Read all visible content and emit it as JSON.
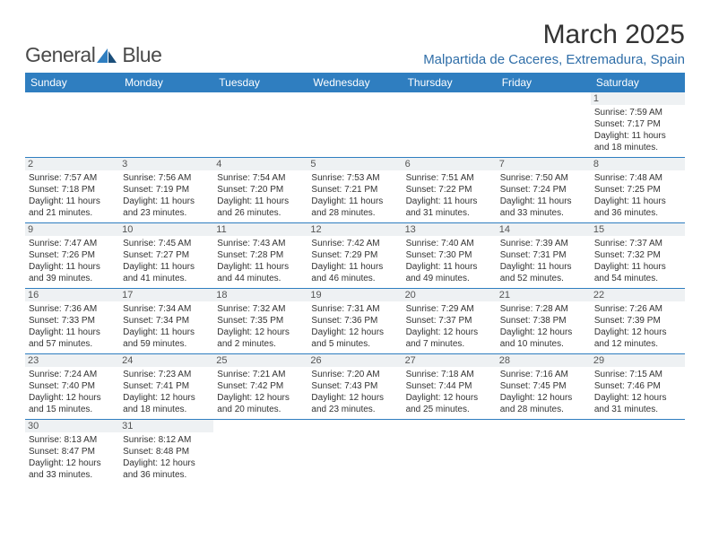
{
  "logo": {
    "text1": "General",
    "text2": "Blue",
    "iconColor": "#2f7ec0"
  },
  "title": "March 2025",
  "location": "Malpartida de Caceres, Extremadura, Spain",
  "colors": {
    "header": "#2f7ec0",
    "dayBg": "#eef1f3",
    "location": "#2f6ea8"
  },
  "weekdays": [
    "Sunday",
    "Monday",
    "Tuesday",
    "Wednesday",
    "Thursday",
    "Friday",
    "Saturday"
  ],
  "weeks": [
    [
      null,
      null,
      null,
      null,
      null,
      null,
      {
        "n": "1",
        "sr": "Sunrise: 7:59 AM",
        "ss": "Sunset: 7:17 PM",
        "d1": "Daylight: 11 hours",
        "d2": "and 18 minutes."
      }
    ],
    [
      {
        "n": "2",
        "sr": "Sunrise: 7:57 AM",
        "ss": "Sunset: 7:18 PM",
        "d1": "Daylight: 11 hours",
        "d2": "and 21 minutes."
      },
      {
        "n": "3",
        "sr": "Sunrise: 7:56 AM",
        "ss": "Sunset: 7:19 PM",
        "d1": "Daylight: 11 hours",
        "d2": "and 23 minutes."
      },
      {
        "n": "4",
        "sr": "Sunrise: 7:54 AM",
        "ss": "Sunset: 7:20 PM",
        "d1": "Daylight: 11 hours",
        "d2": "and 26 minutes."
      },
      {
        "n": "5",
        "sr": "Sunrise: 7:53 AM",
        "ss": "Sunset: 7:21 PM",
        "d1": "Daylight: 11 hours",
        "d2": "and 28 minutes."
      },
      {
        "n": "6",
        "sr": "Sunrise: 7:51 AM",
        "ss": "Sunset: 7:22 PM",
        "d1": "Daylight: 11 hours",
        "d2": "and 31 minutes."
      },
      {
        "n": "7",
        "sr": "Sunrise: 7:50 AM",
        "ss": "Sunset: 7:24 PM",
        "d1": "Daylight: 11 hours",
        "d2": "and 33 minutes."
      },
      {
        "n": "8",
        "sr": "Sunrise: 7:48 AM",
        "ss": "Sunset: 7:25 PM",
        "d1": "Daylight: 11 hours",
        "d2": "and 36 minutes."
      }
    ],
    [
      {
        "n": "9",
        "sr": "Sunrise: 7:47 AM",
        "ss": "Sunset: 7:26 PM",
        "d1": "Daylight: 11 hours",
        "d2": "and 39 minutes."
      },
      {
        "n": "10",
        "sr": "Sunrise: 7:45 AM",
        "ss": "Sunset: 7:27 PM",
        "d1": "Daylight: 11 hours",
        "d2": "and 41 minutes."
      },
      {
        "n": "11",
        "sr": "Sunrise: 7:43 AM",
        "ss": "Sunset: 7:28 PM",
        "d1": "Daylight: 11 hours",
        "d2": "and 44 minutes."
      },
      {
        "n": "12",
        "sr": "Sunrise: 7:42 AM",
        "ss": "Sunset: 7:29 PM",
        "d1": "Daylight: 11 hours",
        "d2": "and 46 minutes."
      },
      {
        "n": "13",
        "sr": "Sunrise: 7:40 AM",
        "ss": "Sunset: 7:30 PM",
        "d1": "Daylight: 11 hours",
        "d2": "and 49 minutes."
      },
      {
        "n": "14",
        "sr": "Sunrise: 7:39 AM",
        "ss": "Sunset: 7:31 PM",
        "d1": "Daylight: 11 hours",
        "d2": "and 52 minutes."
      },
      {
        "n": "15",
        "sr": "Sunrise: 7:37 AM",
        "ss": "Sunset: 7:32 PM",
        "d1": "Daylight: 11 hours",
        "d2": "and 54 minutes."
      }
    ],
    [
      {
        "n": "16",
        "sr": "Sunrise: 7:36 AM",
        "ss": "Sunset: 7:33 PM",
        "d1": "Daylight: 11 hours",
        "d2": "and 57 minutes."
      },
      {
        "n": "17",
        "sr": "Sunrise: 7:34 AM",
        "ss": "Sunset: 7:34 PM",
        "d1": "Daylight: 11 hours",
        "d2": "and 59 minutes."
      },
      {
        "n": "18",
        "sr": "Sunrise: 7:32 AM",
        "ss": "Sunset: 7:35 PM",
        "d1": "Daylight: 12 hours",
        "d2": "and 2 minutes."
      },
      {
        "n": "19",
        "sr": "Sunrise: 7:31 AM",
        "ss": "Sunset: 7:36 PM",
        "d1": "Daylight: 12 hours",
        "d2": "and 5 minutes."
      },
      {
        "n": "20",
        "sr": "Sunrise: 7:29 AM",
        "ss": "Sunset: 7:37 PM",
        "d1": "Daylight: 12 hours",
        "d2": "and 7 minutes."
      },
      {
        "n": "21",
        "sr": "Sunrise: 7:28 AM",
        "ss": "Sunset: 7:38 PM",
        "d1": "Daylight: 12 hours",
        "d2": "and 10 minutes."
      },
      {
        "n": "22",
        "sr": "Sunrise: 7:26 AM",
        "ss": "Sunset: 7:39 PM",
        "d1": "Daylight: 12 hours",
        "d2": "and 12 minutes."
      }
    ],
    [
      {
        "n": "23",
        "sr": "Sunrise: 7:24 AM",
        "ss": "Sunset: 7:40 PM",
        "d1": "Daylight: 12 hours",
        "d2": "and 15 minutes."
      },
      {
        "n": "24",
        "sr": "Sunrise: 7:23 AM",
        "ss": "Sunset: 7:41 PM",
        "d1": "Daylight: 12 hours",
        "d2": "and 18 minutes."
      },
      {
        "n": "25",
        "sr": "Sunrise: 7:21 AM",
        "ss": "Sunset: 7:42 PM",
        "d1": "Daylight: 12 hours",
        "d2": "and 20 minutes."
      },
      {
        "n": "26",
        "sr": "Sunrise: 7:20 AM",
        "ss": "Sunset: 7:43 PM",
        "d1": "Daylight: 12 hours",
        "d2": "and 23 minutes."
      },
      {
        "n": "27",
        "sr": "Sunrise: 7:18 AM",
        "ss": "Sunset: 7:44 PM",
        "d1": "Daylight: 12 hours",
        "d2": "and 25 minutes."
      },
      {
        "n": "28",
        "sr": "Sunrise: 7:16 AM",
        "ss": "Sunset: 7:45 PM",
        "d1": "Daylight: 12 hours",
        "d2": "and 28 minutes."
      },
      {
        "n": "29",
        "sr": "Sunrise: 7:15 AM",
        "ss": "Sunset: 7:46 PM",
        "d1": "Daylight: 12 hours",
        "d2": "and 31 minutes."
      }
    ],
    [
      {
        "n": "30",
        "sr": "Sunrise: 8:13 AM",
        "ss": "Sunset: 8:47 PM",
        "d1": "Daylight: 12 hours",
        "d2": "and 33 minutes."
      },
      {
        "n": "31",
        "sr": "Sunrise: 8:12 AM",
        "ss": "Sunset: 8:48 PM",
        "d1": "Daylight: 12 hours",
        "d2": "and 36 minutes."
      },
      null,
      null,
      null,
      null,
      null
    ]
  ]
}
